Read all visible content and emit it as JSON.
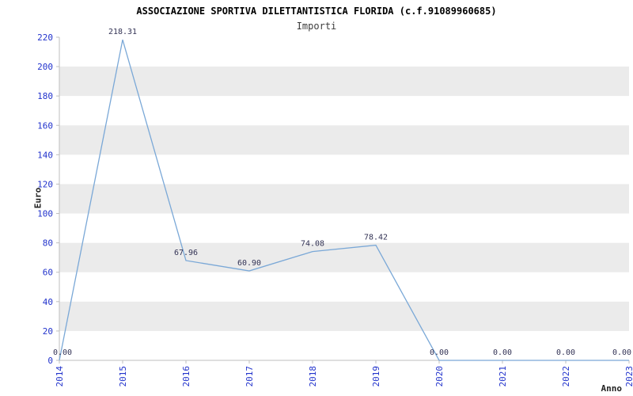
{
  "chart_data": {
    "type": "line",
    "title": "ASSOCIAZIONE SPORTIVA DILETTANTISTICA FLORIDA (c.f.91089960685)",
    "subtitle": "Importi",
    "xlabel": "Anno",
    "ylabel": "Euro",
    "categories": [
      "2014",
      "2015",
      "2016",
      "2017",
      "2018",
      "2019",
      "2020",
      "2021",
      "2022",
      "2023"
    ],
    "series": [
      {
        "name": "Importi",
        "values": [
          0.0,
          218.31,
          67.96,
          60.9,
          74.08,
          78.42,
          0.0,
          0.0,
          0.0,
          0.0
        ],
        "labels": [
          "0.00",
          "218.31",
          "67.96",
          "60.90",
          "74.08",
          "78.42",
          "0.00",
          "0.00",
          "0.00",
          "0.00"
        ]
      }
    ],
    "ylim": [
      0,
      220
    ],
    "ytick_step": 20,
    "grid": "banded-rows",
    "legend": "none",
    "colors": {
      "line": "#7aa8d7",
      "band": "#ebebeb",
      "axis": "#bfbfbf",
      "tick_label": "#2233cc",
      "value_label": "#333355",
      "background": "#ffffff"
    }
  }
}
